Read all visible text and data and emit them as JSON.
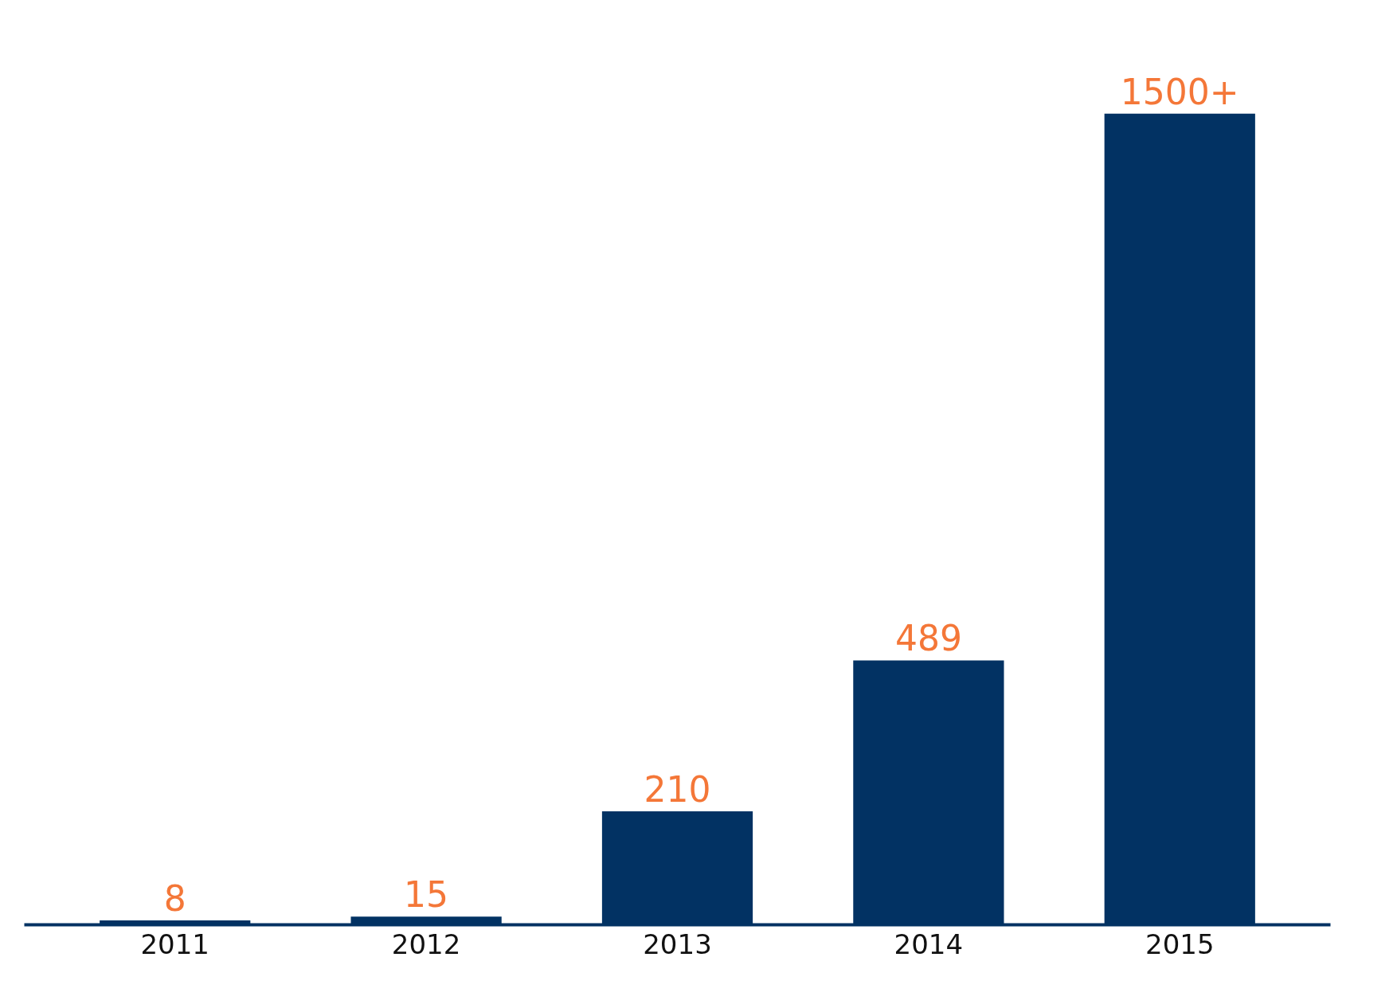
{
  "chart_data": {
    "type": "bar",
    "categories": [
      "2011",
      "2012",
      "2013",
      "2014",
      "2015"
    ],
    "values": [
      8,
      15,
      210,
      489,
      1500
    ],
    "value_labels": [
      "8",
      "15",
      "210",
      "489",
      "1500+"
    ],
    "color": "#023263",
    "grid": false
  }
}
